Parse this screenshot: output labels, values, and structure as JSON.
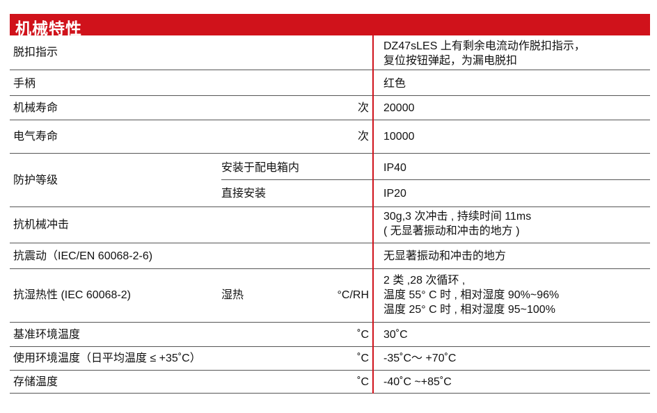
{
  "section_title": "机械特性",
  "rows": [
    {
      "label": "脱扣指示",
      "value": [
        "DZ47sLES 上有剩余电流动作脱扣指示，",
        "复位按钮弹起，为漏电脱扣"
      ]
    },
    {
      "label": "手柄",
      "value": [
        "红色"
      ]
    },
    {
      "label": "机械寿命",
      "unit": "次",
      "value": [
        "20000"
      ]
    },
    {
      "label": "电气寿命",
      "unit": "次",
      "value": [
        "10000"
      ]
    },
    {
      "label": "防护等级",
      "sub": [
        {
          "label": "安装于配电箱内",
          "value": "IP40"
        },
        {
          "label": "直接安装",
          "value": "IP20"
        }
      ]
    },
    {
      "label": "抗机械冲击",
      "value": [
        "30g,3 次冲击 , 持续时间 11ms",
        "( 无显著振动和冲击的地方 )"
      ]
    },
    {
      "label": "抗震动（IEC/EN 60068-2-6)",
      "value": [
        "无显著振动和冲击的地方"
      ]
    },
    {
      "label": "抗湿热性 (IEC 60068-2)",
      "sublabel": "湿热",
      "unit": "°C/RH",
      "value": [
        "2 类 ,28 次循环 ,",
        "温度 55° C 时 , 相对湿度 90%~96%",
        "温度 25° C 时 , 相对湿度 95~100%"
      ]
    },
    {
      "label": "基准环境温度",
      "unit": "˚C",
      "value": [
        "30˚C"
      ]
    },
    {
      "label": "使用环境温度（日平均温度 ≤ +35˚C）",
      "unit": "˚C",
      "value": [
        "-35˚C～ +70˚C"
      ]
    },
    {
      "label": "存储温度",
      "unit": "˚C",
      "value": [
        "-40˚C ~+85˚C"
      ]
    }
  ],
  "colors": {
    "accent": "#d0121b",
    "rule": "#555555"
  }
}
